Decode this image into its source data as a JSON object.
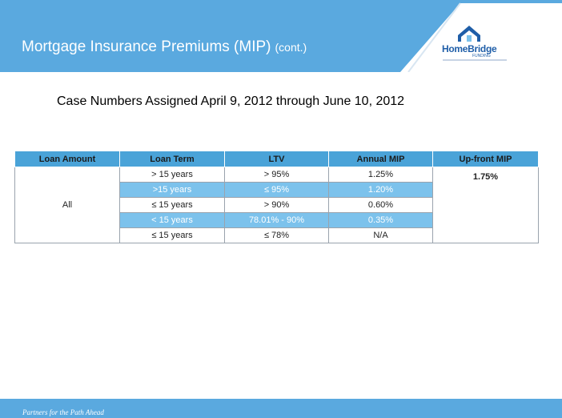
{
  "header": {
    "title": "Mortgage Insurance Premiums (MIP)",
    "title_suffix": "(cont.)"
  },
  "logo": {
    "word": "HomeBridge",
    "sub": "FUNDING"
  },
  "subtitle": "Case Numbers Assigned April 9, 2012 through June 10, 2012",
  "table": {
    "headers": [
      "Loan Amount",
      "Loan Term",
      "LTV",
      "Annual MIP",
      "Up-front MIP"
    ],
    "loan_amount": "All",
    "upfront_mip": "1.75%",
    "rows": [
      {
        "term": "> 15 years",
        "ltv": "> 95%",
        "mip": "1.25%"
      },
      {
        "term": ">15 years",
        "ltv": "≤ 95%",
        "mip": "1.20%"
      },
      {
        "term": "≤ 15 years",
        "ltv": "> 90%",
        "mip": "0.60%"
      },
      {
        "term": "< 15 years",
        "ltv": "78.01% - 90%",
        "mip": "0.35%"
      },
      {
        "term": "≤ 15 years",
        "ltv": "≤ 78%",
        "mip": "N/A"
      }
    ]
  },
  "footer": {
    "tagline": "Partners for the Path Ahead"
  },
  "colors": {
    "header_blue": "#5aa9df",
    "table_header": "#4aa3d8",
    "band_blue": "#7cc2ec",
    "brand_blue": "#1f5ea8"
  }
}
